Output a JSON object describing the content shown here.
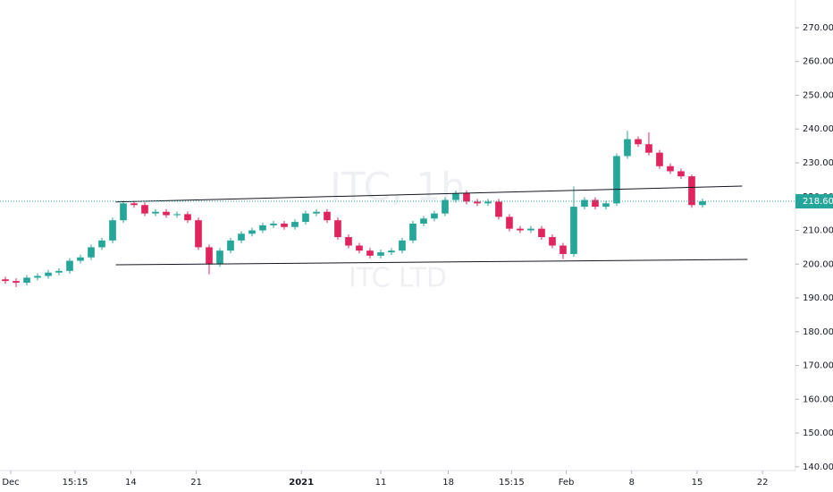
{
  "chart_data": {
    "type": "candlestick",
    "title": "ITC, 1h",
    "subtitle": "ITC LTD",
    "up_color": "#26a69a",
    "down_color": "#e0245e",
    "open": [
      195.5,
      195,
      194.5,
      196,
      196.5,
      197.5,
      198,
      201,
      202,
      205,
      207,
      213,
      218,
      217.5,
      215,
      215.5,
      214.5,
      214.8,
      213,
      205,
      200,
      204,
      207,
      209,
      210,
      211.5,
      212,
      211,
      212.5,
      215,
      215.5,
      213,
      208,
      205.5,
      204,
      202.5,
      203.5,
      204,
      207,
      212,
      213.5,
      215,
      219,
      221,
      218.5,
      218,
      218.5,
      214,
      210.5,
      210,
      210.5,
      208,
      205.5,
      203,
      217,
      219,
      217,
      218,
      232,
      237,
      235.5,
      233,
      229,
      227.5,
      226,
      217.5
    ],
    "high": [
      196.3,
      195.8,
      196.8,
      197.3,
      198.3,
      198.8,
      201.8,
      202.8,
      205.8,
      207.8,
      213.8,
      218.8,
      218.8,
      218.3,
      216.3,
      216.3,
      215.6,
      215.6,
      213.8,
      205.8,
      204.8,
      207.8,
      209.8,
      210.8,
      212.3,
      212.8,
      212.8,
      213.3,
      215.8,
      216.3,
      216.3,
      213.8,
      208.8,
      206.3,
      204.8,
      204.3,
      204.8,
      207.8,
      212.8,
      214.3,
      215.8,
      219.8,
      221.8,
      221.8,
      219.3,
      219.3,
      219.3,
      214.8,
      211.3,
      211.3,
      211.3,
      208.8,
      206.3,
      223,
      219.8,
      219.8,
      218.8,
      232.8,
      239.5,
      237.8,
      239,
      233.8,
      229.8,
      228.3,
      226.5,
      219.4
    ],
    "low": [
      194.2,
      193.2,
      193.7,
      195.2,
      195.7,
      196.7,
      197.2,
      200.2,
      201.2,
      204.2,
      206.2,
      212.2,
      216.7,
      214.2,
      214.2,
      213.7,
      213.7,
      212.2,
      204.2,
      197,
      199.2,
      203.2,
      206.2,
      208.2,
      209.2,
      210.7,
      210.2,
      210.2,
      211.7,
      214.2,
      212.2,
      207.2,
      204.7,
      203.2,
      201.7,
      201.7,
      202.7,
      203.2,
      206.2,
      211.2,
      212.7,
      214.2,
      218.2,
      217.7,
      217.2,
      217.2,
      213.2,
      209.7,
      209.2,
      209.2,
      207.2,
      204.7,
      201.5,
      202.2,
      216.2,
      216.2,
      216.2,
      217.2,
      231.2,
      234.7,
      232.2,
      228.2,
      226.7,
      225.2,
      216.7,
      216.7
    ],
    "close": [
      195,
      194.5,
      196,
      196.5,
      197.5,
      198,
      201,
      202,
      205,
      207,
      213,
      218,
      217.5,
      215,
      215.5,
      214.5,
      214.8,
      213,
      205,
      200,
      204,
      207,
      209,
      210,
      211.5,
      212,
      211,
      212.5,
      215,
      215.5,
      213,
      208,
      205.5,
      204,
      202.5,
      203.5,
      204,
      207,
      212,
      213.5,
      215,
      219,
      221,
      218.5,
      218,
      218.5,
      214,
      210.5,
      210,
      210.5,
      208,
      205.5,
      203,
      217,
      219,
      217,
      218,
      232,
      237,
      235.5,
      233,
      229,
      227.5,
      226,
      217.5,
      218.6
    ],
    "xlim": [
      -0.5,
      73.67
    ],
    "xticks": [
      {
        "value": 0.5,
        "label": "Dec"
      },
      {
        "value": 6.5,
        "label": "15:15"
      },
      {
        "value": 11.7,
        "label": "14"
      },
      {
        "value": 17.8,
        "label": "21"
      },
      {
        "value": 27.6,
        "label": "2021"
      },
      {
        "value": 35,
        "label": "11"
      },
      {
        "value": 41.3,
        "label": "18"
      },
      {
        "value": 47.2,
        "label": "15:15"
      },
      {
        "value": 52.3,
        "label": "Feb"
      },
      {
        "value": 58.4,
        "label": "8"
      },
      {
        "value": 64.5,
        "label": "15"
      },
      {
        "value": 70.6,
        "label": "22"
      }
    ],
    "ylim": [
      138.9,
      278.2
    ],
    "yticks": [
      {
        "value": 140,
        "label": "140.00"
      },
      {
        "value": 150,
        "label": "150.00"
      },
      {
        "value": 160,
        "label": "160.00"
      },
      {
        "value": 170,
        "label": "170.00"
      },
      {
        "value": 180,
        "label": "180.00"
      },
      {
        "value": 190,
        "label": "190.00"
      },
      {
        "value": 200,
        "label": "200.00"
      },
      {
        "value": 210,
        "label": "210.00"
      },
      {
        "value": 220,
        "label": "220.00"
      },
      {
        "value": 230,
        "label": "230.00"
      },
      {
        "value": 240,
        "label": "240.00"
      },
      {
        "value": 250,
        "label": "250.00"
      },
      {
        "value": 260,
        "label": "260.00"
      },
      {
        "value": 270,
        "label": "270.00"
      }
    ],
    "last_price": {
      "value": 218.6,
      "label": "218.60"
    },
    "trend_lines": [
      {
        "x": [
          10.3,
          68.7
        ],
        "y": [
          218.4,
          223.1
        ]
      },
      {
        "x": [
          10.3,
          69.2
        ],
        "y": [
          199.8,
          201.4
        ]
      }
    ]
  }
}
